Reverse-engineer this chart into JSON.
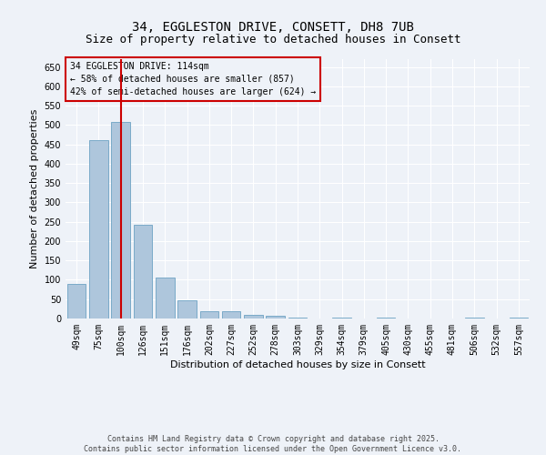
{
  "title_line1": "34, EGGLESTON DRIVE, CONSETT, DH8 7UB",
  "title_line2": "Size of property relative to detached houses in Consett",
  "xlabel": "Distribution of detached houses by size in Consett",
  "ylabel": "Number of detached properties",
  "categories": [
    "49sqm",
    "75sqm",
    "100sqm",
    "126sqm",
    "151sqm",
    "176sqm",
    "202sqm",
    "227sqm",
    "252sqm",
    "278sqm",
    "303sqm",
    "329sqm",
    "354sqm",
    "379sqm",
    "405sqm",
    "430sqm",
    "455sqm",
    "481sqm",
    "506sqm",
    "532sqm",
    "557sqm"
  ],
  "values": [
    90,
    460,
    508,
    243,
    105,
    48,
    18,
    18,
    10,
    7,
    3,
    0,
    2,
    0,
    3,
    0,
    0,
    0,
    2,
    0,
    2
  ],
  "bar_color": "#aec6dc",
  "bar_edge_color": "#7aaac8",
  "vline_x": 2,
  "vline_color": "#cc0000",
  "annotation_box_text": "34 EGGLESTON DRIVE: 114sqm\n← 58% of detached houses are smaller (857)\n42% of semi-detached houses are larger (624) →",
  "box_edge_color": "#cc0000",
  "background_color": "#eef2f8",
  "grid_color": "#ffffff",
  "ylim": [
    0,
    670
  ],
  "footer_line1": "Contains HM Land Registry data © Crown copyright and database right 2025.",
  "footer_line2": "Contains public sector information licensed under the Open Government Licence v3.0.",
  "title_fontsize": 10,
  "subtitle_fontsize": 9,
  "axis_label_fontsize": 8,
  "tick_fontsize": 7,
  "annotation_fontsize": 7,
  "footer_fontsize": 6
}
